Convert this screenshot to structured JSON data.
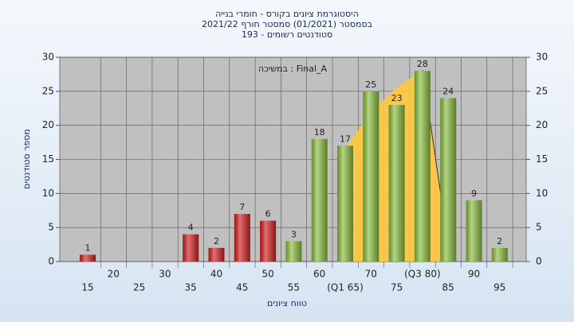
{
  "chart_data": {
    "type": "bar",
    "title": "היסטוגרמת ציונים בקורס - חומרי בנייה",
    "subtitle": "בסמסטר  (01/2021)  סמסטר חורף 2021/22",
    "subtitle2": "סטודנטים רשומים - 193",
    "annotation": "במשיכה : Final_A",
    "x_label": "טווח ציונים",
    "y_label": "מספר סטודנטים",
    "categories": [
      "15",
      "20",
      "25",
      "30",
      "35",
      "40",
      "45",
      "50",
      "55",
      "60",
      "(Q1 65)",
      "70",
      "75",
      "(Q3 80)",
      "85",
      "90",
      "95"
    ],
    "values": [
      1,
      0,
      0,
      0,
      4,
      2,
      7,
      6,
      3,
      18,
      17,
      25,
      23,
      28,
      24,
      9,
      2
    ],
    "colors": [
      "#d42020",
      "#d42020",
      "#d42020",
      "#d42020",
      "#d42020",
      "#d42020",
      "#d42020",
      "#d42020",
      "#8cc040",
      "#8cc040",
      "#8cc040",
      "#8cc040",
      "#8cc040",
      "#8cc040",
      "#8cc040",
      "#8cc040",
      "#8cc040"
    ],
    "ylim": [
      0,
      30
    ],
    "yticks": [
      0,
      5,
      10,
      15,
      20,
      25,
      30
    ],
    "y2lim": [
      0,
      30
    ],
    "y2ticks": [
      0,
      5,
      10,
      15,
      20,
      25,
      30
    ],
    "grid": true
  }
}
